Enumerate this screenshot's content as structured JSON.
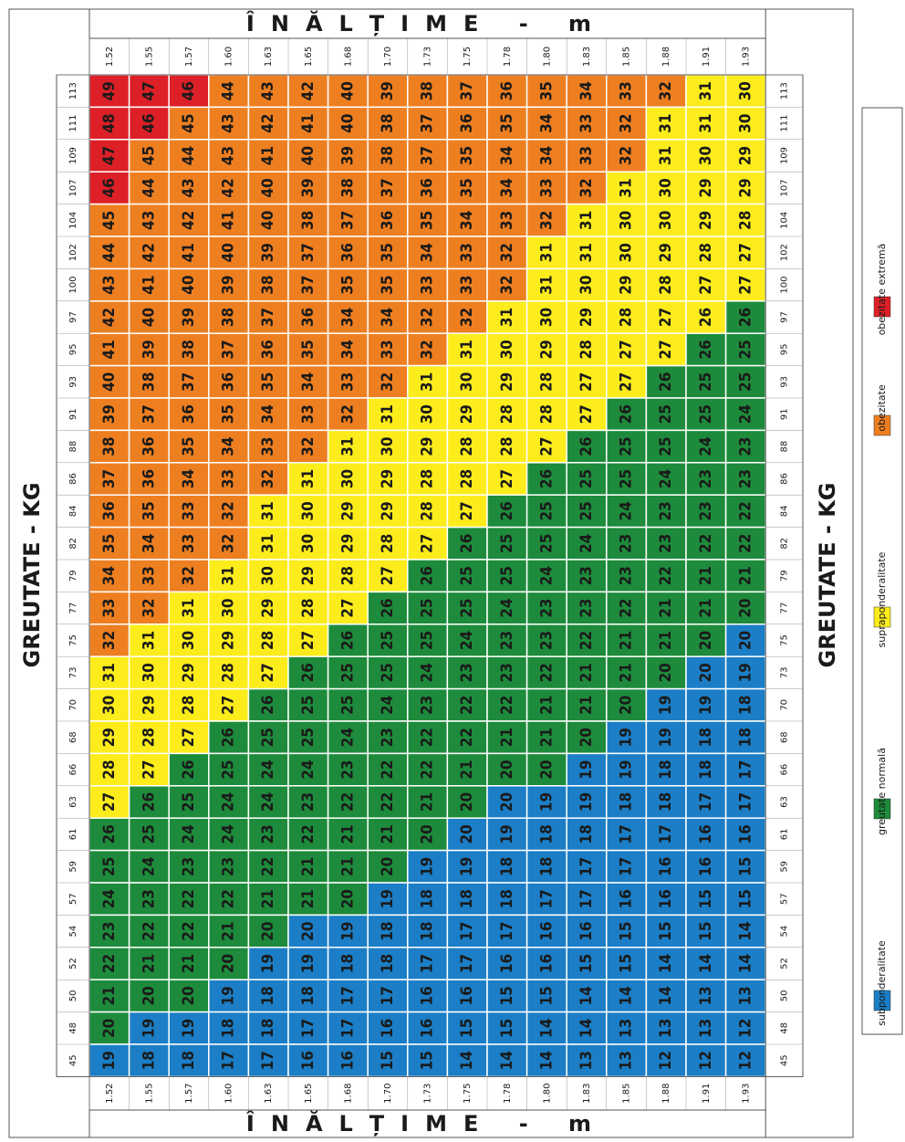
{
  "title_side": "GREUTATE - KG",
  "title_top": "ÎNĂLȚIME - m",
  "legend": [
    {
      "label": "subponderalitate",
      "color": "#1b7ec6"
    },
    {
      "label": "greutate normală",
      "color": "#1d8b3b"
    },
    {
      "label": "supraponderalitate",
      "color": "#fcec1c"
    },
    {
      "label": "obezitate",
      "color": "#ee7f21"
    },
    {
      "label": "obezitate extremă",
      "color": "#dd2027"
    }
  ],
  "table": {
    "heights": [
      "1.52",
      "1.55",
      "1.57",
      "1.60",
      "1.63",
      "1.65",
      "1.68",
      "1.70",
      "1.73",
      "1.75",
      "1.78",
      "1.80",
      "1.83",
      "1.85",
      "1.88",
      "1.91",
      "1.93"
    ],
    "weights": [
      113,
      111,
      109,
      107,
      104,
      102,
      100,
      97,
      95,
      93,
      91,
      88,
      86,
      84,
      82,
      79,
      77,
      75,
      73,
      70,
      68,
      66,
      63,
      61,
      59,
      57,
      54,
      52,
      50,
      48,
      45
    ],
    "rows": [
      [
        49,
        47,
        46,
        44,
        43,
        42,
        40,
        39,
        38,
        37,
        36,
        35,
        34,
        33,
        32,
        31,
        30
      ],
      [
        48,
        46,
        45,
        43,
        42,
        41,
        40,
        38,
        37,
        36,
        35,
        34,
        33,
        32,
        31,
        31,
        30
      ],
      [
        47,
        45,
        44,
        43,
        41,
        40,
        39,
        38,
        37,
        35,
        34,
        34,
        33,
        32,
        31,
        30,
        29
      ],
      [
        46,
        44,
        43,
        42,
        40,
        39,
        38,
        37,
        36,
        35,
        34,
        33,
        32,
        31,
        30,
        29,
        29
      ],
      [
        45,
        43,
        42,
        41,
        40,
        38,
        37,
        36,
        35,
        34,
        33,
        32,
        31,
        30,
        30,
        29,
        28
      ],
      [
        44,
        42,
        41,
        40,
        39,
        37,
        36,
        35,
        34,
        33,
        32,
        31,
        31,
        30,
        29,
        28,
        27
      ],
      [
        43,
        41,
        40,
        39,
        38,
        37,
        35,
        35,
        33,
        33,
        32,
        31,
        30,
        29,
        28,
        27,
        27
      ],
      [
        42,
        40,
        39,
        38,
        37,
        36,
        34,
        34,
        32,
        32,
        31,
        30,
        29,
        28,
        27,
        26,
        26
      ],
      [
        41,
        39,
        38,
        37,
        36,
        35,
        34,
        33,
        32,
        31,
        30,
        29,
        28,
        27,
        27,
        26,
        25
      ],
      [
        40,
        38,
        37,
        36,
        35,
        34,
        33,
        32,
        31,
        30,
        29,
        28,
        27,
        27,
        26,
        25,
        25
      ],
      [
        39,
        37,
        36,
        35,
        34,
        33,
        32,
        31,
        30,
        29,
        28,
        28,
        27,
        26,
        25,
        25,
        24
      ],
      [
        38,
        36,
        35,
        34,
        33,
        32,
        31,
        30,
        29,
        28,
        28,
        27,
        26,
        25,
        25,
        24,
        23
      ],
      [
        37,
        36,
        34,
        33,
        32,
        31,
        30,
        29,
        28,
        28,
        27,
        26,
        25,
        25,
        24,
        23,
        23
      ],
      [
        36,
        35,
        33,
        32,
        31,
        30,
        29,
        29,
        28,
        27,
        26,
        25,
        25,
        24,
        23,
        23,
        22
      ],
      [
        35,
        34,
        33,
        32,
        31,
        30,
        29,
        28,
        27,
        26,
        25,
        25,
        24,
        23,
        23,
        22,
        22
      ],
      [
        34,
        33,
        32,
        31,
        30,
        29,
        28,
        27,
        26,
        25,
        25,
        24,
        23,
        23,
        22,
        21,
        21
      ],
      [
        33,
        32,
        31,
        30,
        29,
        28,
        27,
        26,
        25,
        25,
        24,
        23,
        23,
        22,
        21,
        21,
        20
      ],
      [
        32,
        31,
        30,
        29,
        28,
        27,
        26,
        25,
        25,
        24,
        23,
        23,
        22,
        21,
        21,
        20,
        20
      ],
      [
        31,
        30,
        29,
        28,
        27,
        26,
        25,
        25,
        24,
        23,
        23,
        22,
        21,
        21,
        20,
        20,
        19
      ],
      [
        30,
        29,
        28,
        27,
        26,
        25,
        25,
        24,
        23,
        22,
        22,
        21,
        21,
        20,
        19,
        19,
        18
      ],
      [
        29,
        28,
        27,
        26,
        25,
        25,
        24,
        23,
        22,
        22,
        21,
        21,
        20,
        19,
        19,
        18,
        18
      ],
      [
        28,
        27,
        26,
        25,
        24,
        24,
        23,
        22,
        22,
        21,
        20,
        20,
        19,
        19,
        18,
        18,
        17
      ],
      [
        27,
        26,
        25,
        24,
        24,
        23,
        22,
        22,
        21,
        20,
        20,
        19,
        19,
        18,
        18,
        17,
        17
      ],
      [
        26,
        25,
        24,
        24,
        23,
        22,
        21,
        21,
        20,
        20,
        19,
        18,
        18,
        17,
        17,
        16,
        16
      ],
      [
        25,
        24,
        23,
        23,
        22,
        21,
        21,
        20,
        19,
        19,
        18,
        18,
        17,
        17,
        16,
        16,
        15
      ],
      [
        24,
        23,
        22,
        22,
        21,
        21,
        20,
        19,
        18,
        18,
        18,
        17,
        17,
        16,
        16,
        15,
        15
      ],
      [
        23,
        22,
        22,
        21,
        20,
        20,
        19,
        18,
        18,
        17,
        17,
        16,
        16,
        15,
        15,
        15,
        14
      ],
      [
        22,
        21,
        21,
        20,
        19,
        19,
        18,
        18,
        17,
        17,
        16,
        16,
        15,
        15,
        14,
        14,
        14
      ],
      [
        21,
        20,
        20,
        19,
        18,
        18,
        17,
        17,
        16,
        16,
        15,
        15,
        14,
        14,
        14,
        13,
        13
      ],
      [
        20,
        19,
        19,
        18,
        18,
        17,
        17,
        16,
        16,
        15,
        15,
        14,
        14,
        13,
        13,
        13,
        12
      ],
      [
        19,
        18,
        18,
        17,
        17,
        16,
        16,
        15,
        15,
        14,
        14,
        14,
        13,
        13,
        12,
        12,
        12
      ]
    ],
    "levels": [
      "44433333333333322",
      "44333333333333222",
      "43333333333333222",
      "43333333333332222",
      "33333333333322222",
      "33333333333222222",
      "33333333333222222",
      "33333333332222221",
      "33333333322222211",
      "33333333222222111",
      "33333332222221111",
      "33333322222211111",
      "33333222222111111",
      "33332222221111111",
      "33332222211111111",
      "33322222111111111",
      "33222221111111111",
      "32222211111111110",
      "22222111111111100",
      "22221111111111000",
      "22211111111110000",
      "22111111111100000",
      "21111111110000000",
      "11111111100000000",
      "11111111000000000",
      "11111110000000000",
      "11111000000000000",
      "11110000000000000",
      "11100000000000000",
      "10000000000000000",
      "00000000000000000"
    ]
  }
}
